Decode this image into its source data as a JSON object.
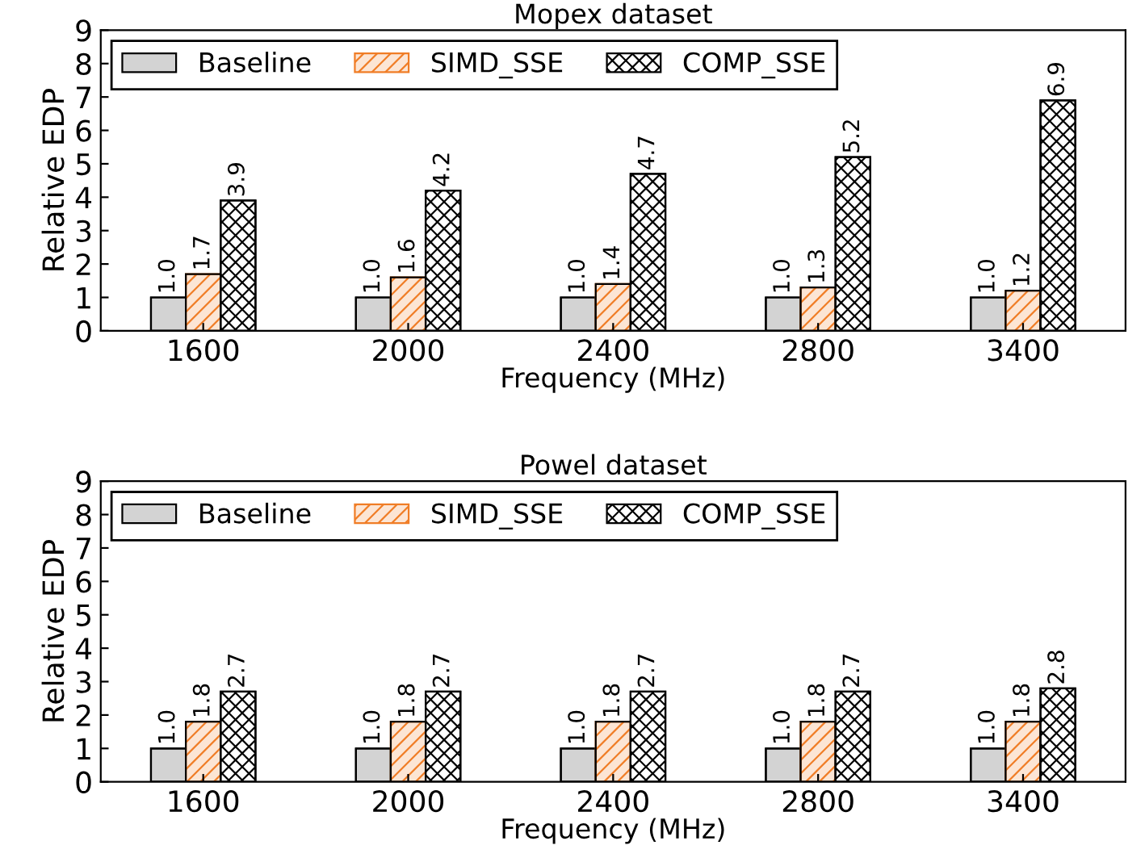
{
  "chart_data": [
    {
      "type": "bar",
      "title": "Mopex dataset",
      "xlabel": "Frequency (MHz)",
      "ylabel": "Relative EDP",
      "categories": [
        "1600",
        "2000",
        "2400",
        "2800",
        "3400"
      ],
      "series": [
        {
          "name": "Baseline",
          "color": "#d3d3d3",
          "values": [
            1.0,
            1.0,
            1.0,
            1.0,
            1.0
          ],
          "value_labels": [
            "1.0",
            "1.0",
            "1.0",
            "1.0",
            "1.0"
          ]
        },
        {
          "name": "SIMD_SSE",
          "color": "#f07d26",
          "values": [
            1.7,
            1.6,
            1.4,
            1.3,
            1.2
          ],
          "value_labels": [
            "1.7",
            "1.6",
            "1.4",
            "1.3",
            "1.2"
          ]
        },
        {
          "name": "COMP_SSE",
          "color": "#000000",
          "values": [
            3.9,
            4.2,
            4.7,
            5.2,
            6.9
          ],
          "value_labels": [
            "3.9",
            "4.2",
            "4.7",
            "5.2",
            "6.9"
          ]
        }
      ],
      "ylim": [
        0,
        9
      ],
      "yticks": [
        0,
        1,
        2,
        3,
        4,
        5,
        6,
        7,
        8,
        9
      ],
      "legend": "top left"
    },
    {
      "type": "bar",
      "title": "Powel dataset",
      "xlabel": "Frequency (MHz)",
      "ylabel": "Relative EDP",
      "categories": [
        "1600",
        "2000",
        "2400",
        "2800",
        "3400"
      ],
      "series": [
        {
          "name": "Baseline",
          "color": "#d3d3d3",
          "values": [
            1.0,
            1.0,
            1.0,
            1.0,
            1.0
          ],
          "value_labels": [
            "1.0",
            "1.0",
            "1.0",
            "1.0",
            "1.0"
          ]
        },
        {
          "name": "SIMD_SSE",
          "color": "#f07d26",
          "values": [
            1.8,
            1.8,
            1.8,
            1.8,
            1.8
          ],
          "value_labels": [
            "1.8",
            "1.8",
            "1.8",
            "1.8",
            "1.8"
          ]
        },
        {
          "name": "COMP_SSE",
          "color": "#000000",
          "values": [
            2.7,
            2.7,
            2.7,
            2.7,
            2.8
          ],
          "value_labels": [
            "2.7",
            "2.7",
            "2.7",
            "2.7",
            "2.8"
          ]
        }
      ],
      "ylim": [
        0,
        9
      ],
      "yticks": [
        0,
        1,
        2,
        3,
        4,
        5,
        6,
        7,
        8,
        9
      ],
      "legend": "top left"
    }
  ]
}
